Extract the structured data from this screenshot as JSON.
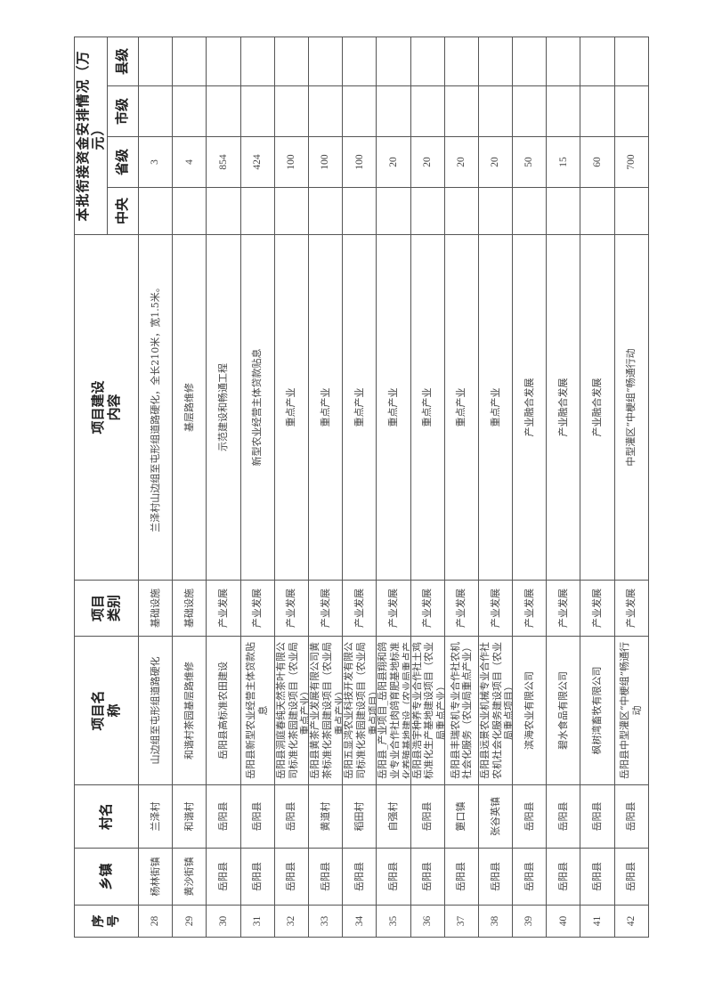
{
  "header": {
    "seq": "序号",
    "town": "乡镇",
    "village": "村名",
    "project_name": "项目名称",
    "project_type": "项目类别",
    "content": "项目建设内容",
    "funding_band": "本批衔接资金安排情况（万元）",
    "central": "中央",
    "provincial": "省级",
    "city": "市级",
    "county": "县级"
  },
  "rows": [
    {
      "seq": "28",
      "town": "杨林街镇",
      "village": "兰泽村",
      "name": "山边组至屯形组道路硬化",
      "type": "基础设施",
      "content": "兰泽村山边组至屯形组道路硬化，全长210米，宽1.5米。",
      "central": "",
      "provincial": "3",
      "city": "",
      "county": ""
    },
    {
      "seq": "29",
      "town": "黄沙街镇",
      "village": "和谐村",
      "name": "和谐村茶园基层路维修",
      "type": "基础设施",
      "content": "基层路维修",
      "central": "",
      "provincial": "4",
      "city": "",
      "county": ""
    },
    {
      "seq": "30",
      "town": "岳阳县",
      "village": "岳阳县",
      "name": "岳阳县高标准农田建设",
      "type": "产业发展",
      "content": "示范建设和畅通工程",
      "central": "",
      "provincial": "854",
      "city": "",
      "county": ""
    },
    {
      "seq": "31",
      "town": "岳阳县",
      "village": "岳阳县",
      "name": "岳阳县新型农业经营主体贷款贴息",
      "type": "产业发展",
      "content": "新型农业经营主体贷款贴息",
      "central": "",
      "provincial": "424",
      "city": "",
      "county": ""
    },
    {
      "seq": "32",
      "town": "岳阳县",
      "village": "岳阳县",
      "name": "岳阳县洞庭春纯天然茶叶有限公司标准化茶园建设项目（农业局重点产业）",
      "type": "产业发展",
      "content": "重点产业",
      "central": "",
      "provincial": "100",
      "city": "",
      "county": ""
    },
    {
      "seq": "33",
      "town": "岳阳县",
      "village": "黄道村",
      "name": "岳阳县黄茶产业发展有限公司黄茶标准化茶园建设项目（农业局重点产业）",
      "type": "产业发展",
      "content": "重点产业",
      "central": "",
      "provincial": "100",
      "city": "",
      "county": ""
    },
    {
      "seq": "34",
      "town": "岳阳县",
      "village": "稻田村",
      "name": "岳阳五显鸿农业科技开发有限公司标准化茶园建设项目（农业局重点项目）",
      "type": "产业发展",
      "content": "重点产业",
      "central": "",
      "provincial": "100",
      "city": "",
      "county": ""
    },
    {
      "seq": "35",
      "town": "岳阳县",
      "village": "自强村",
      "name": "岳阳县_产业项目_岳阳县翔和鸽业专业合作社肉鸽育肥基地标准化养殖基地建设（农业局重点产业）",
      "type": "产业发展",
      "content": "重点产业",
      "central": "",
      "provincial": "20",
      "city": "",
      "county": ""
    },
    {
      "seq": "36",
      "town": "岳阳县",
      "village": "岳阳县",
      "name": "岳阳县浩宇种养专业合作社土鸡标准化生产基地建设项目（农业局重点产业）",
      "type": "产业发展",
      "content": "重点产业",
      "central": "",
      "provincial": "20",
      "city": "",
      "county": ""
    },
    {
      "seq": "37",
      "town": "岳阳县",
      "village": "筻口镇",
      "name": "岳阳县丰瑞农机专业合作社农机社会化服务（农业局重点产业）",
      "type": "产业发展",
      "content": "重点产业",
      "central": "",
      "provincial": "20",
      "city": "",
      "county": ""
    },
    {
      "seq": "38",
      "town": "岳阳县",
      "village": "张谷英镇",
      "name": "岳阳县远景农业机械专业合作社农机社会化服务建设项目（农业局重点项目）",
      "type": "产业发展",
      "content": "重点产业",
      "central": "",
      "provincial": "20",
      "city": "",
      "county": ""
    },
    {
      "seq": "39",
      "town": "岳阳县",
      "village": "岳阳县",
      "name": "滨海农业有限公司",
      "type": "产业发展",
      "content": "产业融合发展",
      "central": "",
      "provincial": "50",
      "city": "",
      "county": ""
    },
    {
      "seq": "40",
      "town": "岳阳县",
      "village": "岳阳县",
      "name": "碧水食品有限公司",
      "type": "产业发展",
      "content": "产业融合发展",
      "central": "",
      "provincial": "15",
      "city": "",
      "county": ""
    },
    {
      "seq": "41",
      "town": "岳阳县",
      "village": "岳阳县",
      "name": "枫树湾畜牧有限公司",
      "type": "产业发展",
      "content": "产业融合发展",
      "central": "",
      "provincial": "60",
      "city": "",
      "county": ""
    },
    {
      "seq": "42",
      "town": "岳阳县",
      "village": "岳阳县",
      "name": "岳阳县中型灌区“中梗组”畅通行动",
      "type": "产业发展",
      "content": "中型灌区“中梗组”畅通行动",
      "central": "",
      "provincial": "700",
      "city": "",
      "county": ""
    }
  ]
}
